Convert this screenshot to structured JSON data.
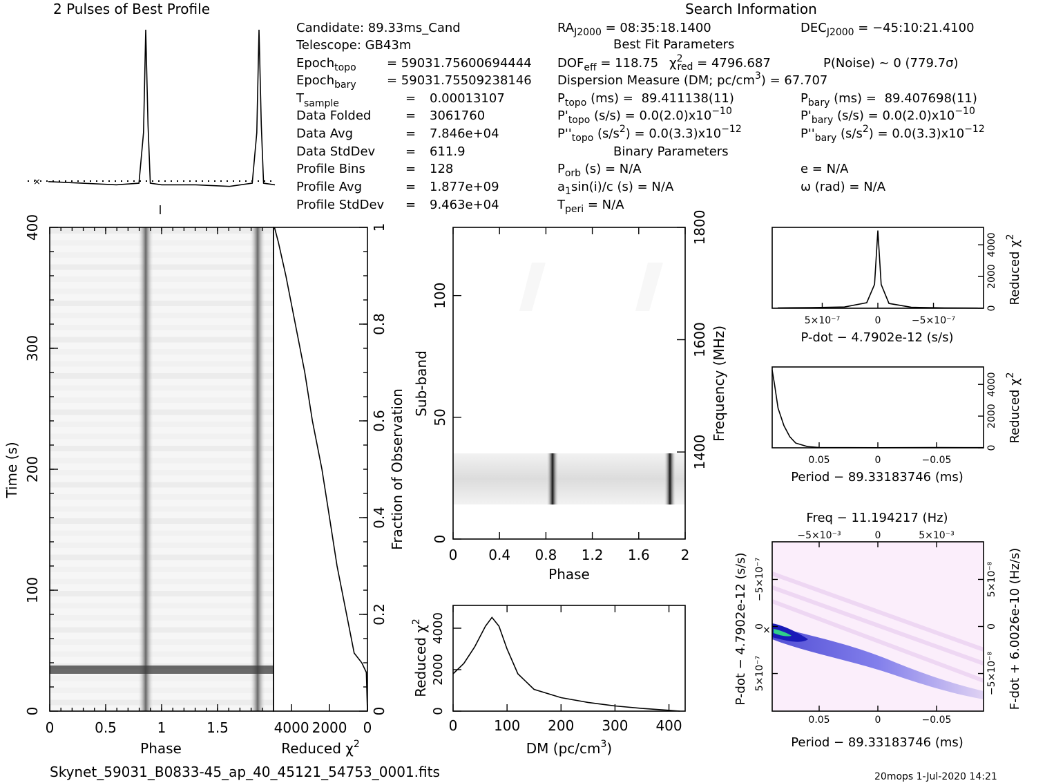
{
  "titles": {
    "profile": "2 Pulses of Best Profile",
    "search": "Search Information",
    "best_fit": "Best Fit Parameters",
    "binary": "Binary Parameters",
    "file": "Skynet_59031_B0833-45_ap_40_45121_54753_0001.fits",
    "footer": "20mops   1-Jul-2020 14:21"
  },
  "candidate_info": {
    "candidate": "Candidate:  89.33ms_Cand",
    "telescope": "Telescope:  GB43m",
    "epoch_topo": "= 59031.75600694444",
    "epoch_bary": "= 59031.75509238146",
    "t_sample": "0.00013107",
    "data_folded": "3061760",
    "data_avg": "7.846e+04",
    "data_stddev": "611.9",
    "profile_bins": "128",
    "profile_avg": "1.877e+09",
    "profile_stddev": "9.463e+04"
  },
  "labels": {
    "epoch": "Epoch",
    "topo": "topo",
    "bary": "bary",
    "t": "T",
    "sample": "sample",
    "data_folded": "Data Folded",
    "data_avg": "Data Avg",
    "data_stddev": "Data StdDev",
    "profile_bins": "Profile Bins",
    "profile_avg": "Profile Avg",
    "profile_stddev": "Profile StdDev",
    "eq": "=",
    "ra": "RA",
    "dec": "DEC",
    "j2000": "J2000",
    "dof": "DOF",
    "eff": "eff",
    "chi": "χ",
    "red": "red",
    "p": "P",
    "pp": "P'",
    "ppp": "P''",
    "orb": "orb",
    "peri": "peri",
    "a1": "a",
    "one": "1",
    "sini": "sin(i)/c (s) = N/A",
    "ms_unit": " (ms) = ",
    "ss_unit": " (s/s) = ",
    "ss2_unit": " (s/s",
    "two": "2",
    "close_eq": ") = ",
    "times10": "x10",
    "e_na": "e = N/A",
    "omega_na": "ω (rad) = N/A",
    "orb_na": " (s) = N/A",
    "peri_na": " = N/A",
    "dm_pre": "Dispersion Measure (DM; pc/cm",
    "dm_post": ") = 67.707",
    "three": "3"
  },
  "search_info": {
    "ra_val": " = 08:35:18.1400",
    "dec_val": " = −45:10:21.4100",
    "dof_val": " = 118.75",
    "chi_val": " = 4796.687",
    "pnoise": "P(Noise) ~ 0    (779.7σ)",
    "p_topo": "89.411138(11)",
    "p_bary": "89.407698(11)",
    "pd_topo": "0.0(2.0)",
    "pd_bary": "0.0(2.0)",
    "pd_exp": "−10",
    "pdd_topo": "0.0(3.3)",
    "pdd_bary": "0.0(3.3)",
    "pdd_exp": "−12"
  },
  "axes": {
    "phase": "Phase",
    "time": "Time (s)",
    "reduced_chi2": "Reduced χ",
    "sq": "2",
    "fraction": "Fraction of Observation",
    "subband": "Sub-band",
    "frequency": "Frequency (MHz)",
    "dm": "DM (pc/cm",
    "dm_close": ")",
    "dm_cube": "3",
    "pdot_title": "P-dot − 4.7902e-12 (s/s)",
    "period_title": "Period − 89.33183746 (ms)",
    "freq_title": "Freq − 11.194217 (Hz)",
    "pdot_y": "P-dot − 4.7902e-12 (s/s)",
    "fdot_y": "F-dot + 6.0026e-10 (Hz/s)"
  },
  "ticks": {
    "phase_main": [
      "0",
      "0.5",
      "1",
      "1.5"
    ],
    "time_main": [
      "0",
      "100",
      "200",
      "300",
      "400"
    ],
    "chi_main": [
      "4000",
      "2000",
      "0"
    ],
    "fraction": [
      "0",
      "0.2",
      "0.4",
      "0.6",
      "0.8",
      "1"
    ],
    "subband": [
      "0",
      "50",
      "100"
    ],
    "freq": [
      "1400",
      "1600",
      "1800"
    ],
    "phase_sub": [
      "0",
      "0.4",
      "0.8",
      "1.2",
      "1.6",
      "2"
    ],
    "dm": [
      "0",
      "100",
      "200",
      "300",
      "400"
    ],
    "dm_chi": [
      "0",
      "2000",
      "4000"
    ],
    "small_chi": [
      "0",
      "2000",
      "4000"
    ],
    "pdot_x": [
      "5×10⁻⁷",
      "0",
      "−5×10⁻⁷"
    ],
    "period_x": [
      "0.05",
      "0",
      "−0.05"
    ],
    "freq_x": [
      "−5×10⁻³",
      "0",
      "5×10⁻³"
    ],
    "pdot_y_t": [
      "−5×10⁻⁷",
      "0",
      "5×10⁻⁷"
    ],
    "fdot_y_t": [
      "5×10⁻⁸",
      "0",
      "−5×10⁻⁸"
    ]
  },
  "colors": {
    "ink": "#000000",
    "grey_pulse": "#555555",
    "map_blue": "#2a2ad8",
    "map_green": "#2fd08a",
    "map_bg": "#fbeefb"
  },
  "chart_data": [
    {
      "type": "line",
      "name": "profile",
      "title": "2 Pulses of Best Profile",
      "x": [
        0,
        0.3,
        0.6,
        0.8,
        0.84,
        0.86,
        0.88,
        0.9,
        1.0,
        1.3,
        1.6,
        1.8,
        1.84,
        1.86,
        1.88,
        1.9,
        2.0
      ],
      "y": [
        0.04,
        0.03,
        0.02,
        0.03,
        0.35,
        1.0,
        0.4,
        0.03,
        0.02,
        0.02,
        0.01,
        0.03,
        0.35,
        1.0,
        0.4,
        0.03,
        0.02
      ]
    },
    {
      "type": "line",
      "name": "cumulative reduced chi2",
      "x": [
        4900,
        4700,
        4300,
        3800,
        3300,
        2900,
        2400,
        2000,
        1600,
        1100,
        700,
        300,
        60,
        0
      ],
      "y": [
        1.0,
        0.97,
        0.9,
        0.8,
        0.7,
        0.6,
        0.5,
        0.4,
        0.3,
        0.2,
        0.12,
        0.1,
        0.08,
        0
      ],
      "xlim": [
        4950,
        0
      ],
      "ylim": [
        0,
        1
      ]
    },
    {
      "type": "line",
      "name": "dm curve",
      "xlabel": "DM (pc/cm3)",
      "ylabel": "Reduced χ2",
      "x": [
        0,
        20,
        40,
        60,
        72,
        85,
        100,
        120,
        150,
        200,
        250,
        300,
        350,
        400,
        420
      ],
      "y": [
        1800,
        2300,
        3100,
        4100,
        4520,
        4100,
        3000,
        1800,
        1050,
        650,
        420,
        250,
        130,
        40,
        0
      ],
      "xlim": [
        0,
        430
      ],
      "ylim": [
        0,
        5100
      ]
    },
    {
      "type": "line",
      "name": "pdot curve",
      "x": [
        9e-07,
        6e-07,
        3e-07,
        1e-07,
        3e-08,
        0,
        -3e-08,
        -1e-07,
        -3e-07,
        -6e-07,
        -9e-07
      ],
      "y": [
        20,
        40,
        80,
        350,
        1500,
        4900,
        1500,
        300,
        60,
        20,
        10
      ],
      "xlim": [
        9.5e-07,
        -9.5e-07
      ],
      "ylim": [
        0,
        5100
      ]
    },
    {
      "type": "line",
      "name": "period curve",
      "x": [
        0.09,
        0.088,
        0.085,
        0.08,
        0.075,
        0.07,
        0.06,
        0.05,
        0,
        -0.05,
        -0.09
      ],
      "y": [
        4900,
        4000,
        2500,
        1400,
        700,
        300,
        80,
        20,
        10,
        20,
        15
      ],
      "xlim": [
        0.09,
        -0.09
      ],
      "ylim": [
        0,
        5100
      ]
    }
  ]
}
